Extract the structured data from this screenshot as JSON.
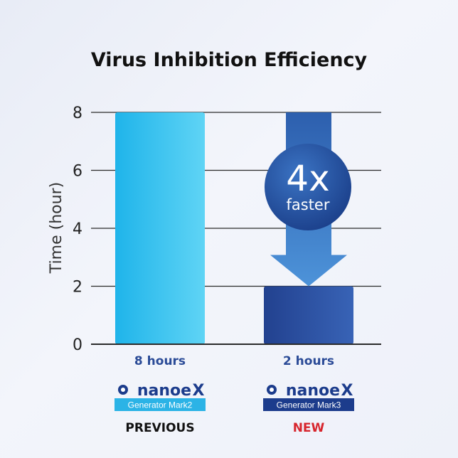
{
  "chart_data": {
    "type": "bar",
    "title": "Virus Inhibition Efficiency",
    "ylabel": "Time (hour)",
    "ylim": [
      0,
      8
    ],
    "yticks": [
      "0",
      "2",
      "4",
      "6",
      "8"
    ],
    "grid": true,
    "series": [
      {
        "values": [
          8,
          2
        ]
      }
    ],
    "bar_colors": [
      "#35c3ee",
      "#24479c"
    ],
    "bar_labels": [
      "8 hours",
      "2 hours"
    ],
    "annotation": {
      "big": "4x",
      "small": "faster"
    }
  },
  "products": [
    {
      "brand": "nanoe",
      "generator": "Generator Mark2",
      "status": "PREVIOUS",
      "tag_color": "#2bb3e6",
      "status_color": "#111111"
    },
    {
      "brand": "nanoe",
      "generator": "Generator Mark3",
      "status": "NEW",
      "tag_color": "#1c3c8c",
      "status_color": "#d7262e"
    }
  ],
  "colors": {
    "label_blue": "#2b4b97",
    "arrow": "#3f7cc8",
    "badge": "#2456a8",
    "grid": "#2a2a2a"
  }
}
